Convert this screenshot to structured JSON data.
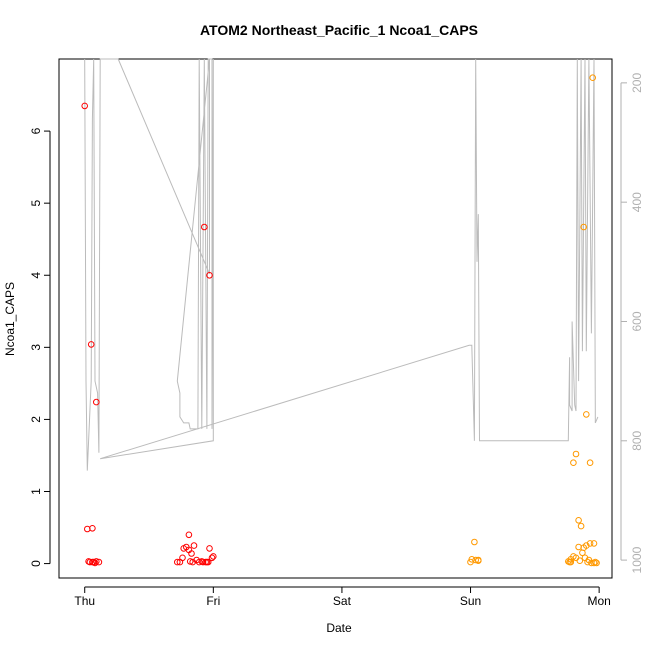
{
  "chart_data": {
    "type": "scatter",
    "title": "ATOM2 Northeast_Pacific_1 Ncoa1_CAPS",
    "xlabel": "Date",
    "ylabel": "Ncoa1_CAPS",
    "x_ticks": [
      "Thu",
      "Fri",
      "Sat",
      "Sun",
      "Mon"
    ],
    "xlim": [
      -0.2,
      4.1
    ],
    "ylim": [
      -0.2,
      7.0
    ],
    "y_ticks": [
      0,
      1,
      2,
      3,
      4,
      5,
      6
    ],
    "right_axis": {
      "label": "",
      "ticks": [
        200,
        400,
        600,
        800,
        1000
      ],
      "lim": [
        1030,
        160
      ],
      "color": "#b0b0b0"
    },
    "grid": false,
    "colors": {
      "series1": "#ff0000",
      "series2": "#ff9900",
      "depth_line": "#bbbbbb"
    },
    "series": [
      {
        "color": "#ff0000",
        "points": [
          [
            0.0,
            6.35
          ],
          [
            0.05,
            3.04
          ],
          [
            0.09,
            2.24
          ],
          [
            0.02,
            0.48
          ],
          [
            0.06,
            0.49
          ],
          [
            0.03,
            0.03
          ],
          [
            0.06,
            0.02
          ],
          [
            0.08,
            0.01
          ],
          [
            0.09,
            0.03
          ],
          [
            0.11,
            0.02
          ],
          [
            0.07,
            0.02
          ],
          [
            0.04,
            0.02
          ],
          [
            0.93,
            4.67
          ],
          [
            0.97,
            4.0
          ],
          [
            0.81,
            0.4
          ],
          [
            0.79,
            0.23
          ],
          [
            0.81,
            0.19
          ],
          [
            0.77,
            0.21
          ],
          [
            0.85,
            0.25
          ],
          [
            0.83,
            0.14
          ],
          [
            0.76,
            0.08
          ],
          [
            0.74,
            0.02
          ],
          [
            0.72,
            0.02
          ],
          [
            0.82,
            0.03
          ],
          [
            0.84,
            0.02
          ],
          [
            0.87,
            0.05
          ],
          [
            0.89,
            0.02
          ],
          [
            0.91,
            0.03
          ],
          [
            0.92,
            0.02
          ],
          [
            0.95,
            0.02
          ],
          [
            0.97,
            0.21
          ],
          [
            0.99,
            0.08
          ],
          [
            1.0,
            0.1
          ],
          [
            0.96,
            0.02
          ],
          [
            0.94,
            0.02
          ]
        ]
      },
      {
        "color": "#ff9900",
        "points": [
          [
            3.03,
            0.3
          ],
          [
            3.01,
            0.06
          ],
          [
            3.0,
            0.02
          ],
          [
            3.04,
            0.05
          ],
          [
            3.06,
            0.04
          ],
          [
            3.06,
            0.05
          ],
          [
            3.95,
            6.74
          ],
          [
            3.88,
            4.67
          ],
          [
            3.82,
            1.52
          ],
          [
            3.93,
            1.4
          ],
          [
            3.8,
            1.4
          ],
          [
            3.9,
            2.07
          ],
          [
            3.84,
            0.6
          ],
          [
            3.86,
            0.52
          ],
          [
            3.84,
            0.23
          ],
          [
            3.88,
            0.22
          ],
          [
            3.93,
            0.28
          ],
          [
            3.96,
            0.28
          ],
          [
            3.9,
            0.25
          ],
          [
            3.87,
            0.15
          ],
          [
            3.8,
            0.1
          ],
          [
            3.82,
            0.08
          ],
          [
            3.78,
            0.06
          ],
          [
            3.76,
            0.03
          ],
          [
            3.78,
            0.02
          ],
          [
            3.77,
            0.02
          ],
          [
            3.91,
            0.02
          ],
          [
            3.89,
            0.08
          ],
          [
            3.94,
            0.01
          ],
          [
            3.96,
            0.01
          ],
          [
            3.98,
            0.01
          ],
          [
            3.97,
            0.02
          ],
          [
            3.92,
            0.05
          ],
          [
            3.85,
            0.04
          ]
        ]
      }
    ],
    "depth_line": {
      "color": "#bbbbbb",
      "points": [
        [
          0.0,
          160
        ],
        [
          0.01,
          700
        ],
        [
          0.02,
          850
        ],
        [
          0.05,
          700
        ],
        [
          0.06,
          260
        ],
        [
          0.07,
          160
        ],
        [
          0.08,
          700
        ],
        [
          0.1,
          720
        ],
        [
          0.11,
          820
        ],
        [
          0.12,
          160
        ],
        [
          0.26,
          160
        ],
        [
          0.97,
          520
        ],
        [
          0.97,
          160
        ],
        [
          0.72,
          700
        ],
        [
          0.74,
          720
        ],
        [
          0.74,
          760
        ],
        [
          0.77,
          770
        ],
        [
          0.81,
          770
        ],
        [
          0.82,
          780
        ],
        [
          0.88,
          780
        ],
        [
          0.89,
          160
        ],
        [
          0.91,
          780
        ],
        [
          0.93,
          160
        ],
        [
          0.95,
          780
        ],
        [
          0.96,
          160
        ],
        [
          0.99,
          160
        ],
        [
          0.99,
          780
        ],
        [
          1.0,
          160
        ],
        [
          1.0,
          800
        ],
        [
          0.12,
          830
        ],
        [
          2.99,
          640
        ],
        [
          3.01,
          640
        ],
        [
          3.03,
          800
        ],
        [
          3.04,
          160
        ],
        [
          3.05,
          500
        ],
        [
          3.06,
          420
        ],
        [
          3.07,
          800
        ],
        [
          3.76,
          800
        ],
        [
          3.77,
          660
        ],
        [
          3.77,
          740
        ],
        [
          3.79,
          750
        ],
        [
          3.79,
          600
        ],
        [
          3.81,
          740
        ],
        [
          3.82,
          750
        ],
        [
          3.83,
          160
        ],
        [
          3.84,
          700
        ],
        [
          3.86,
          160
        ],
        [
          3.87,
          650
        ],
        [
          3.89,
          160
        ],
        [
          3.9,
          650
        ],
        [
          3.92,
          160
        ],
        [
          3.94,
          620
        ],
        [
          3.96,
          160
        ],
        [
          3.97,
          750
        ],
        [
          3.97,
          770
        ],
        [
          3.99,
          760
        ]
      ]
    }
  }
}
